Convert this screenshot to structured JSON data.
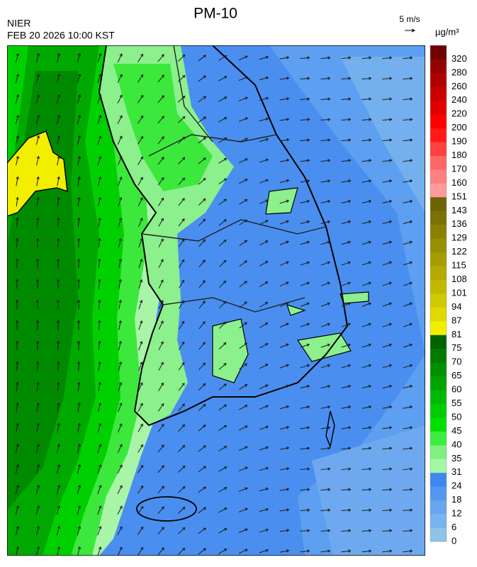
{
  "header": {
    "title": "PM-10",
    "source": "NIER",
    "time": "FEB 20 2026 10:00 KST"
  },
  "wind_scale": "5 m/s",
  "colorbar": {
    "unit": "µg/m³",
    "ticks": [
      0,
      6,
      12,
      18,
      24,
      31,
      35,
      40,
      45,
      50,
      55,
      60,
      65,
      70,
      75,
      81,
      87,
      94,
      101,
      108,
      115,
      122,
      129,
      136,
      143,
      151,
      160,
      170,
      180,
      190,
      200,
      220,
      240,
      260,
      280,
      320
    ],
    "colors": [
      "#8ec4ea",
      "#7ab4ee",
      "#68a6f0",
      "#5597f0",
      "#3d87f0",
      "#a4f7a4",
      "#80f080",
      "#3cee3c",
      "#00e000",
      "#00cc00",
      "#00b800",
      "#00a300",
      "#008f00",
      "#007a00",
      "#006400",
      "#f2ee00",
      "#e0d800",
      "#d0c800",
      "#c2b800",
      "#b4aa00",
      "#a69c00",
      "#978e00",
      "#8a8000",
      "#7a7200",
      "#6b6400",
      "#ff9a9a",
      "#ff8080",
      "#ff6666",
      "#ff4040",
      "#ff1a1a",
      "#ff0000",
      "#e00000",
      "#c80000",
      "#b00000",
      "#960000",
      "#700000"
    ]
  }
}
